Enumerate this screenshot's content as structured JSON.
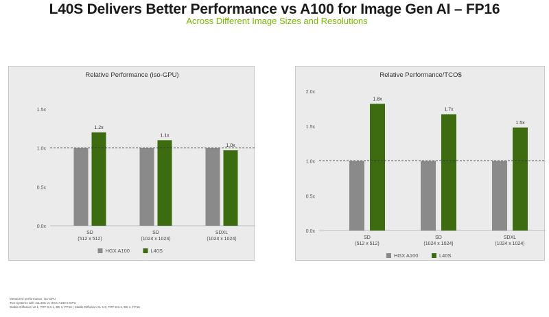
{
  "header": {
    "title": "L40S Delivers Better Performance vs A100 for Image Gen AI – FP16",
    "subtitle": "Across Different Image Sizes and Resolutions"
  },
  "colors": {
    "hgx_a100": "#8a8a8a",
    "l40s": "#3d6b0f",
    "accent": "#76b900"
  },
  "chart_data": [
    {
      "type": "bar",
      "title": "Relative Performance (iso-GPU)",
      "categories": [
        "SD\n(512 x 512)",
        "SD\n(1024 x 1024)",
        "SDXL\n(1024 x 1024)"
      ],
      "series": [
        {
          "name": "HGX A100",
          "values": [
            1.0,
            1.0,
            1.0
          ]
        },
        {
          "name": "L40S",
          "values": [
            1.2,
            1.1,
            0.97
          ]
        }
      ],
      "data_labels": [
        "1.2x",
        "1.1x",
        "1.0x"
      ],
      "yticks": [
        "0.0x",
        "0.5x",
        "1.0x",
        "1.5x"
      ],
      "ylim": [
        0,
        1.5
      ],
      "reference_line": 1.0,
      "legend_position": "bottom",
      "grid": false
    },
    {
      "type": "bar",
      "title": "Relative Performance/TCO$",
      "categories": [
        "SD\n(512 x 512)",
        "SD\n(1024 x 1024)",
        "SDXL\n(1024 x 1024)"
      ],
      "series": [
        {
          "name": "HGX A100",
          "values": [
            1.0,
            1.0,
            1.0
          ]
        },
        {
          "name": "L40S",
          "values": [
            1.82,
            1.67,
            1.48
          ]
        }
      ],
      "data_labels": [
        "1.8x",
        "1.7x",
        "1.5x"
      ],
      "yticks": [
        "0.0x",
        "0.5x",
        "1.0x",
        "1.5x",
        "2.0x"
      ],
      "ylim": [
        0,
        2.0
      ],
      "reference_line": 1.0,
      "legend_position": "bottom",
      "grid": false
    }
  ],
  "footnotes": [
    "Measured performance, iso-GPU",
    "Two systems with 4xL40S vs HGX A100 8 GPU",
    "Stable Diffusion v2.1, TRT 8.6.1, BS 1, FP16   |   Stable Diffusion XL 1.0, TRT 8.6.1, BS 1, FP16"
  ]
}
